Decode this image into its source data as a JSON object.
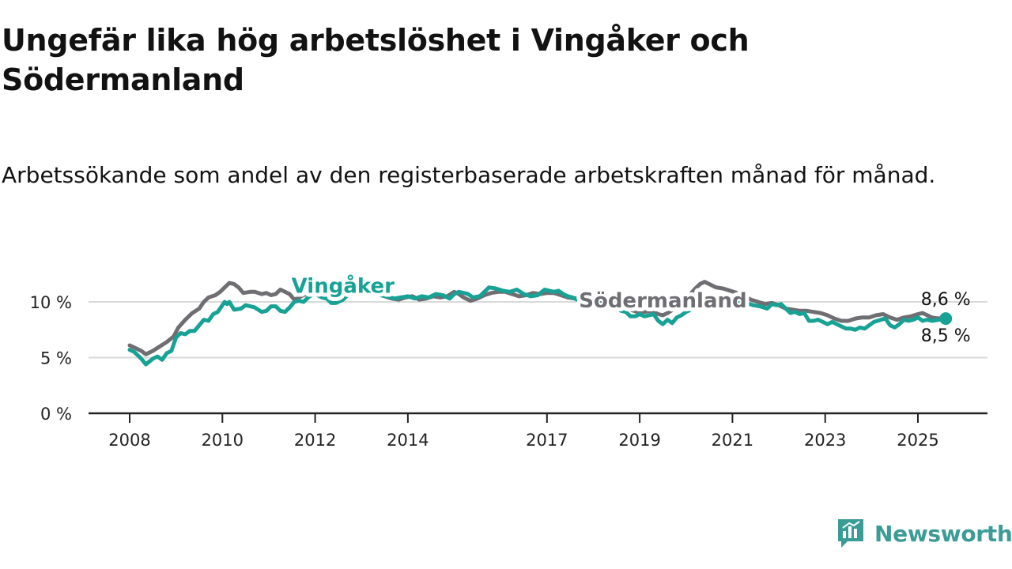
{
  "title": "Ungefär lika hög arbetslöshet i Vingåker och Södermanland",
  "subtitle": "Arbetssökande som andel av den registerbaserade arbetskraften månad för månad.",
  "brand": {
    "name": "Newsworthy",
    "icon": "newsworthy-logo-icon",
    "color": "#3b9c97"
  },
  "colors": {
    "vingaker": "#17a295",
    "sodermanland": "#6e6e73",
    "gridline": "#d9d9d9",
    "axis": "#222222"
  },
  "chart_data": {
    "type": "line",
    "title": "Ungefär lika hög arbetslöshet i Vingåker och Södermanland",
    "subtitle": "Arbetssökande som andel av den registerbaserade arbetskraften månad för månad.",
    "xlabel": "",
    "ylabel": "",
    "xlim": [
      2008.0,
      2027.5
    ],
    "ylim": [
      0,
      12
    ],
    "grid": true,
    "legend": "inline-labels",
    "y_ticks": [
      {
        "value": 0,
        "label": "0 %"
      },
      {
        "value": 5,
        "label": "5 %"
      },
      {
        "value": 10,
        "label": "10 %"
      }
    ],
    "x_ticks": [
      {
        "value": 2009.0,
        "label": "2008"
      },
      {
        "value": 2011.0,
        "label": "2010"
      },
      {
        "value": 2013.0,
        "label": "2012"
      },
      {
        "value": 2015.0,
        "label": "2014"
      },
      {
        "value": 2018.0,
        "label": "2017"
      },
      {
        "value": 2020.0,
        "label": "2019"
      },
      {
        "value": 2022.0,
        "label": "2021"
      },
      {
        "value": 2024.0,
        "label": "2023"
      },
      {
        "value": 2026.0,
        "label": "2025"
      }
    ],
    "series": [
      {
        "name": "Vingåker",
        "key": "vingaker",
        "label_at": [
          2013.6,
          10.8
        ],
        "end_label": "8,5 %",
        "points": [
          [
            2009.0,
            5.7
          ],
          [
            2009.1,
            5.5
          ],
          [
            2009.25,
            4.9
          ],
          [
            2009.35,
            4.4
          ],
          [
            2009.5,
            4.9
          ],
          [
            2009.6,
            5.1
          ],
          [
            2009.7,
            4.8
          ],
          [
            2009.8,
            5.4
          ],
          [
            2009.9,
            5.6
          ],
          [
            2010.0,
            6.8
          ],
          [
            2010.1,
            7.2
          ],
          [
            2010.2,
            7.1
          ],
          [
            2010.3,
            7.4
          ],
          [
            2010.4,
            7.4
          ],
          [
            2010.5,
            7.9
          ],
          [
            2010.6,
            8.4
          ],
          [
            2010.7,
            8.3
          ],
          [
            2010.8,
            8.9
          ],
          [
            2010.9,
            9.1
          ],
          [
            2011.0,
            9.7
          ],
          [
            2011.05,
            10.0
          ],
          [
            2011.1,
            9.8
          ],
          [
            2011.15,
            10.0
          ],
          [
            2011.25,
            9.3
          ],
          [
            2011.4,
            9.4
          ],
          [
            2011.5,
            9.7
          ],
          [
            2011.6,
            9.6
          ],
          [
            2011.7,
            9.5
          ],
          [
            2011.85,
            9.1
          ],
          [
            2011.95,
            9.2
          ],
          [
            2012.05,
            9.6
          ],
          [
            2012.15,
            9.6
          ],
          [
            2012.25,
            9.2
          ],
          [
            2012.35,
            9.1
          ],
          [
            2012.45,
            9.5
          ],
          [
            2012.55,
            10.0
          ],
          [
            2012.65,
            10.1
          ],
          [
            2012.75,
            10.0
          ],
          [
            2012.85,
            10.4
          ],
          [
            2012.95,
            10.7
          ],
          [
            2013.05,
            10.6
          ],
          [
            2013.15,
            10.4
          ],
          [
            2013.25,
            10.3
          ],
          [
            2013.35,
            9.9
          ],
          [
            2013.45,
            9.9
          ],
          [
            2013.6,
            10.2
          ],
          [
            2013.7,
            10.6
          ],
          [
            2013.8,
            10.9
          ],
          [
            2013.95,
            11.1
          ],
          [
            2014.1,
            11.0
          ],
          [
            2014.25,
            10.8
          ],
          [
            2014.4,
            10.6
          ],
          [
            2014.55,
            10.5
          ],
          [
            2014.7,
            10.3
          ],
          [
            2014.85,
            10.4
          ],
          [
            2015.0,
            10.5
          ],
          [
            2015.15,
            10.3
          ],
          [
            2015.3,
            10.5
          ],
          [
            2015.45,
            10.4
          ],
          [
            2015.6,
            10.7
          ],
          [
            2015.75,
            10.6
          ],
          [
            2015.9,
            10.3
          ],
          [
            2016.0,
            10.7
          ],
          [
            2016.1,
            10.9
          ],
          [
            2016.2,
            10.8
          ],
          [
            2016.3,
            10.7
          ],
          [
            2016.4,
            10.4
          ],
          [
            2016.55,
            10.5
          ],
          [
            2016.75,
            11.3
          ],
          [
            2016.9,
            11.2
          ],
          [
            2017.05,
            11.0
          ],
          [
            2017.2,
            10.9
          ],
          [
            2017.35,
            11.1
          ],
          [
            2017.5,
            10.7
          ],
          [
            2017.65,
            10.5
          ],
          [
            2017.8,
            10.6
          ],
          [
            2017.95,
            11.1
          ],
          [
            2018.05,
            11.0
          ],
          [
            2018.15,
            10.9
          ],
          [
            2018.25,
            11.0
          ],
          [
            2018.35,
            10.7
          ],
          [
            2018.45,
            10.5
          ],
          [
            2018.55,
            10.4
          ],
          [
            2018.65,
            10.2
          ],
          [
            2018.75,
            10.4
          ],
          [
            2018.85,
            10.3
          ],
          [
            2018.95,
            10.1
          ],
          [
            2019.05,
            9.9
          ],
          [
            2019.2,
            9.8
          ],
          [
            2019.35,
            9.7
          ],
          [
            2019.5,
            9.5
          ],
          [
            2019.6,
            9.2
          ],
          [
            2019.7,
            9.1
          ],
          [
            2019.8,
            8.7
          ],
          [
            2019.9,
            8.7
          ],
          [
            2020.0,
            8.9
          ],
          [
            2020.1,
            8.7
          ],
          [
            2020.2,
            8.8
          ],
          [
            2020.3,
            8.9
          ],
          [
            2020.4,
            8.3
          ],
          [
            2020.5,
            8.0
          ],
          [
            2020.6,
            8.4
          ],
          [
            2020.7,
            8.1
          ],
          [
            2020.8,
            8.6
          ],
          [
            2020.9,
            8.8
          ],
          [
            2021.0,
            9.1
          ],
          [
            2021.1,
            9.3
          ],
          [
            2021.25,
            9.7
          ],
          [
            2021.4,
            9.9
          ],
          [
            2021.55,
            10.2
          ],
          [
            2021.7,
            10.3
          ],
          [
            2021.85,
            10.4
          ],
          [
            2022.0,
            10.2
          ],
          [
            2022.15,
            10.1
          ],
          [
            2022.3,
            9.9
          ],
          [
            2022.45,
            9.7
          ],
          [
            2022.6,
            9.6
          ],
          [
            2022.75,
            9.4
          ],
          [
            2022.85,
            9.8
          ],
          [
            2022.95,
            9.7
          ],
          [
            2023.05,
            9.8
          ],
          [
            2023.15,
            9.4
          ],
          [
            2023.25,
            9.0
          ],
          [
            2023.35,
            9.1
          ],
          [
            2023.45,
            8.9
          ],
          [
            2023.55,
            9.0
          ],
          [
            2023.65,
            8.3
          ],
          [
            2023.75,
            8.3
          ],
          [
            2023.85,
            8.4
          ],
          [
            2023.95,
            8.2
          ],
          [
            2024.05,
            8.0
          ],
          [
            2024.15,
            8.2
          ],
          [
            2024.3,
            7.9
          ],
          [
            2024.45,
            7.6
          ],
          [
            2024.55,
            7.6
          ],
          [
            2024.65,
            7.5
          ],
          [
            2024.75,
            7.7
          ],
          [
            2024.85,
            7.6
          ],
          [
            2024.95,
            7.9
          ],
          [
            2025.05,
            8.2
          ],
          [
            2025.2,
            8.4
          ],
          [
            2025.3,
            8.5
          ],
          [
            2025.4,
            7.9
          ],
          [
            2025.5,
            7.7
          ],
          [
            2025.6,
            8.0
          ],
          [
            2025.7,
            8.4
          ],
          [
            2025.8,
            8.3
          ],
          [
            2025.9,
            8.4
          ],
          [
            2026.0,
            8.6
          ],
          [
            2026.1,
            8.3
          ],
          [
            2026.2,
            8.4
          ],
          [
            2026.3,
            8.3
          ],
          [
            2026.45,
            8.4
          ],
          [
            2026.6,
            8.5
          ]
        ]
      },
      {
        "name": "Södermanland",
        "key": "sodermanland",
        "label_at": [
          2020.5,
          9.5
        ],
        "end_label": "8,6 %",
        "points": [
          [
            2009.0,
            6.1
          ],
          [
            2009.1,
            5.9
          ],
          [
            2009.25,
            5.6
          ],
          [
            2009.35,
            5.3
          ],
          [
            2009.5,
            5.6
          ],
          [
            2009.65,
            6.0
          ],
          [
            2009.8,
            6.4
          ],
          [
            2009.95,
            6.9
          ],
          [
            2010.05,
            7.7
          ],
          [
            2010.2,
            8.4
          ],
          [
            2010.35,
            9.0
          ],
          [
            2010.5,
            9.4
          ],
          [
            2010.6,
            10.0
          ],
          [
            2010.7,
            10.4
          ],
          [
            2010.85,
            10.6
          ],
          [
            2010.95,
            10.9
          ],
          [
            2011.05,
            11.3
          ],
          [
            2011.15,
            11.7
          ],
          [
            2011.25,
            11.6
          ],
          [
            2011.35,
            11.3
          ],
          [
            2011.45,
            10.8
          ],
          [
            2011.6,
            10.9
          ],
          [
            2011.7,
            10.9
          ],
          [
            2011.85,
            10.7
          ],
          [
            2011.95,
            10.8
          ],
          [
            2012.05,
            10.6
          ],
          [
            2012.15,
            10.7
          ],
          [
            2012.25,
            11.1
          ],
          [
            2012.35,
            10.9
          ],
          [
            2012.45,
            10.7
          ],
          [
            2012.55,
            10.2
          ],
          [
            2012.65,
            10.4
          ],
          [
            2012.75,
            10.6
          ],
          [
            2012.85,
            10.7
          ],
          [
            2012.95,
            10.8
          ],
          [
            2013.05,
            11.2
          ],
          [
            2013.2,
            11.1
          ],
          [
            2013.3,
            10.8
          ],
          [
            2013.4,
            10.3
          ],
          [
            2013.55,
            10.7
          ],
          [
            2013.7,
            11.0
          ],
          [
            2013.85,
            11.2
          ],
          [
            2014.0,
            11.3
          ],
          [
            2014.2,
            11.0
          ],
          [
            2014.35,
            10.7
          ],
          [
            2014.5,
            10.5
          ],
          [
            2014.65,
            10.3
          ],
          [
            2014.8,
            10.2
          ],
          [
            2014.95,
            10.4
          ],
          [
            2015.1,
            10.5
          ],
          [
            2015.25,
            10.2
          ],
          [
            2015.4,
            10.3
          ],
          [
            2015.55,
            10.5
          ],
          [
            2015.7,
            10.4
          ],
          [
            2015.85,
            10.5
          ],
          [
            2016.0,
            10.9
          ],
          [
            2016.1,
            10.7
          ],
          [
            2016.2,
            10.4
          ],
          [
            2016.35,
            10.1
          ],
          [
            2016.5,
            10.3
          ],
          [
            2016.65,
            10.6
          ],
          [
            2016.8,
            10.8
          ],
          [
            2016.95,
            10.9
          ],
          [
            2017.1,
            10.9
          ],
          [
            2017.25,
            10.7
          ],
          [
            2017.4,
            10.5
          ],
          [
            2017.55,
            10.6
          ],
          [
            2017.7,
            10.8
          ],
          [
            2017.85,
            10.7
          ],
          [
            2018.0,
            10.8
          ],
          [
            2018.15,
            10.8
          ],
          [
            2018.3,
            10.6
          ],
          [
            2018.45,
            10.4
          ],
          [
            2018.6,
            10.3
          ],
          [
            2018.75,
            10.5
          ],
          [
            2018.9,
            10.4
          ],
          [
            2019.05,
            10.2
          ],
          [
            2019.2,
            10.0
          ],
          [
            2019.35,
            9.9
          ],
          [
            2019.5,
            9.6
          ],
          [
            2019.65,
            9.4
          ],
          [
            2019.8,
            9.3
          ],
          [
            2019.95,
            9.1
          ],
          [
            2020.1,
            9.1
          ],
          [
            2020.25,
            9.2
          ],
          [
            2020.4,
            8.9
          ],
          [
            2020.5,
            8.8
          ],
          [
            2020.6,
            9.0
          ],
          [
            2020.75,
            9.4
          ],
          [
            2020.9,
            9.8
          ],
          [
            2021.05,
            10.5
          ],
          [
            2021.2,
            11.2
          ],
          [
            2021.3,
            11.6
          ],
          [
            2021.4,
            11.8
          ],
          [
            2021.55,
            11.5
          ],
          [
            2021.65,
            11.3
          ],
          [
            2021.8,
            11.2
          ],
          [
            2021.95,
            11.0
          ],
          [
            2022.1,
            10.8
          ],
          [
            2022.25,
            10.5
          ],
          [
            2022.4,
            10.2
          ],
          [
            2022.55,
            10.0
          ],
          [
            2022.7,
            9.8
          ],
          [
            2022.85,
            9.9
          ],
          [
            2023.0,
            9.7
          ],
          [
            2023.15,
            9.4
          ],
          [
            2023.3,
            9.3
          ],
          [
            2023.45,
            9.2
          ],
          [
            2023.6,
            9.2
          ],
          [
            2023.75,
            9.1
          ],
          [
            2023.9,
            9.0
          ],
          [
            2024.05,
            8.8
          ],
          [
            2024.2,
            8.5
          ],
          [
            2024.35,
            8.3
          ],
          [
            2024.5,
            8.3
          ],
          [
            2024.65,
            8.5
          ],
          [
            2024.8,
            8.6
          ],
          [
            2024.95,
            8.6
          ],
          [
            2025.1,
            8.8
          ],
          [
            2025.25,
            8.9
          ],
          [
            2025.4,
            8.6
          ],
          [
            2025.55,
            8.4
          ],
          [
            2025.7,
            8.6
          ],
          [
            2025.85,
            8.7
          ],
          [
            2026.0,
            8.9
          ],
          [
            2026.1,
            9.0
          ],
          [
            2026.2,
            8.8
          ],
          [
            2026.3,
            8.6
          ],
          [
            2026.45,
            8.5
          ],
          [
            2026.6,
            8.6
          ]
        ]
      }
    ]
  }
}
